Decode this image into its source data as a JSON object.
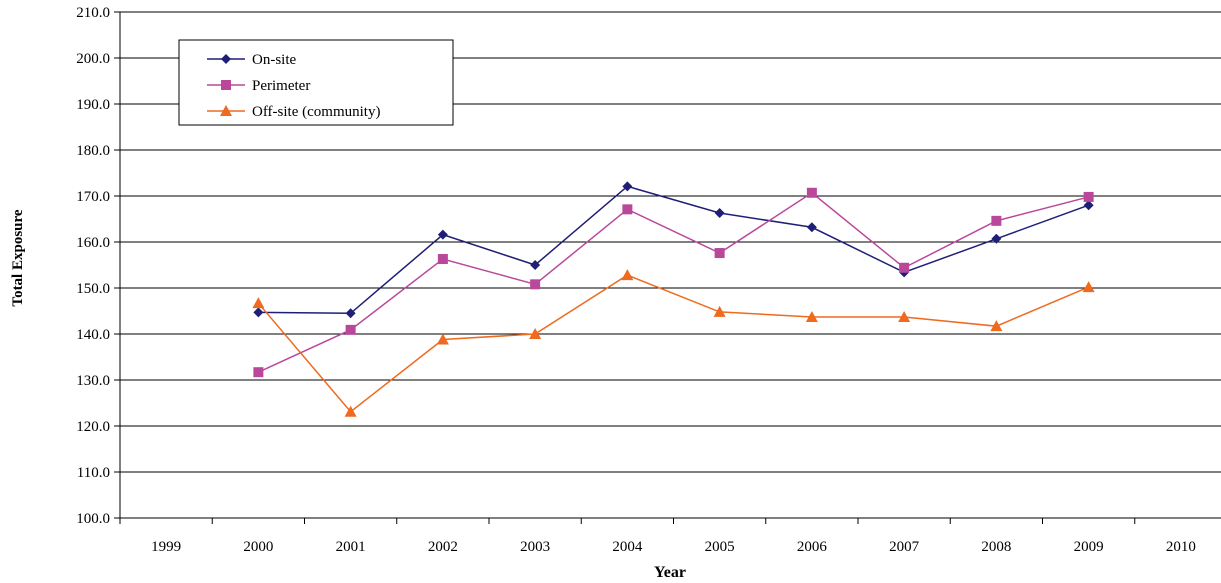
{
  "chart_data": {
    "type": "line",
    "title": "",
    "xlabel": "Year",
    "ylabel": "Total Exposure",
    "x": [
      1999,
      2000,
      2001,
      2002,
      2003,
      2004,
      2005,
      2006,
      2007,
      2008,
      2009,
      2010
    ],
    "x_tick_labels": [
      "1999",
      "2000",
      "2001",
      "2002",
      "2003",
      "2004",
      "2005",
      "2006",
      "2007",
      "2008",
      "2009",
      "2010"
    ],
    "ylim": [
      100,
      210
    ],
    "y_ticks": [
      100,
      110,
      120,
      130,
      140,
      150,
      160,
      170,
      180,
      190,
      200,
      210
    ],
    "y_tick_labels": [
      "100.0",
      "110.0",
      "120.0",
      "130.0",
      "140.0",
      "150.0",
      "160.0",
      "170.0",
      "180.0",
      "190.0",
      "200.0",
      "210.0"
    ],
    "grid": "horizontal",
    "legend_position": "top-left",
    "series": [
      {
        "name": "On-site",
        "color": "#1f1f78",
        "marker": "diamond",
        "x": [
          2000,
          2001,
          2002,
          2003,
          2004,
          2005,
          2006,
          2007,
          2008,
          2009
        ],
        "values": [
          144.7,
          144.5,
          161.6,
          155.0,
          172.1,
          166.3,
          163.2,
          153.4,
          160.7,
          168.0
        ]
      },
      {
        "name": "Perimeter",
        "color": "#b9489b",
        "marker": "square",
        "x": [
          2000,
          2001,
          2002,
          2003,
          2004,
          2005,
          2006,
          2007,
          2008,
          2009
        ],
        "values": [
          131.7,
          140.9,
          156.3,
          150.8,
          167.1,
          157.6,
          170.7,
          154.4,
          164.6,
          169.8
        ]
      },
      {
        "name": "Off-site (community)",
        "color": "#ee6a1e",
        "marker": "triangle",
        "x": [
          2000,
          2001,
          2002,
          2003,
          2004,
          2005,
          2006,
          2007,
          2008,
          2009
        ],
        "values": [
          146.7,
          123.1,
          138.8,
          140.0,
          152.8,
          144.8,
          143.7,
          143.7,
          141.7,
          150.2
        ]
      }
    ]
  }
}
